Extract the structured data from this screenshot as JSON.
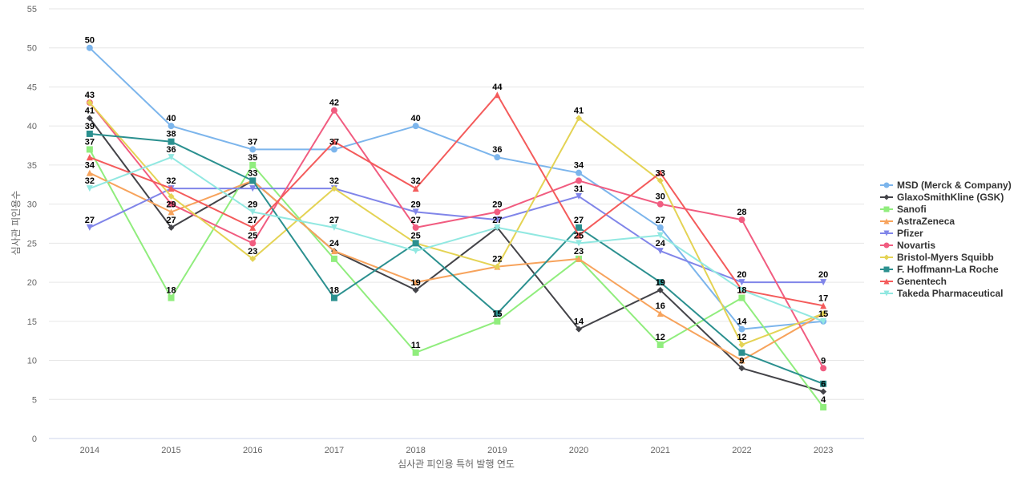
{
  "chart_data": {
    "type": "line",
    "title": "",
    "xlabel": "심사관 피인용 특허 발행 연도",
    "ylabel": "심사관 피인용수",
    "x": [
      "2014",
      "2015",
      "2016",
      "2017",
      "2018",
      "2019",
      "2020",
      "2021",
      "2022",
      "2023"
    ],
    "ylim": [
      0,
      55
    ],
    "yticks": [
      0,
      5,
      10,
      15,
      20,
      25,
      30,
      35,
      40,
      45,
      50,
      55
    ],
    "grid": true,
    "legend_position": "right",
    "series": [
      {
        "name": "MSD (Merck & Company)",
        "color": "#7cb5ec",
        "marker": "circle",
        "values": [
          50,
          40,
          37,
          37,
          40,
          36,
          34,
          27,
          14,
          15
        ]
      },
      {
        "name": "GlaxoSmithKline (GSK)",
        "color": "#434348",
        "marker": "diamond",
        "values": [
          41,
          27,
          33,
          24,
          19,
          27,
          14,
          19,
          9,
          6
        ]
      },
      {
        "name": "Sanofi",
        "color": "#90ed7d",
        "marker": "square",
        "values": [
          37,
          18,
          35,
          23,
          11,
          15,
          23,
          12,
          18,
          4
        ]
      },
      {
        "name": "AstraZeneca",
        "color": "#f7a35c",
        "marker": "triangle",
        "values": [
          34,
          29,
          33,
          24,
          20,
          22,
          23,
          16,
          10,
          16
        ]
      },
      {
        "name": "Pfizer",
        "color": "#8085e9",
        "marker": "triangle-down",
        "values": [
          27,
          32,
          32,
          32,
          29,
          28,
          31,
          24,
          20,
          20
        ]
      },
      {
        "name": "Novartis",
        "color": "#f15c80",
        "marker": "circle",
        "values": [
          43,
          30,
          25,
          42,
          27,
          29,
          33,
          30,
          28,
          9
        ]
      },
      {
        "name": "Bristol-Myers Squibb",
        "color": "#e4d354",
        "marker": "diamond",
        "values": [
          43,
          31,
          23,
          32,
          25,
          22,
          41,
          33,
          12,
          16
        ]
      },
      {
        "name": "F. Hoffmann-La Roche",
        "color": "#2b908f",
        "marker": "square",
        "values": [
          39,
          38,
          33,
          18,
          25,
          16,
          27,
          20,
          11,
          7
        ]
      },
      {
        "name": "Genentech",
        "color": "#f45b5b",
        "marker": "triangle",
        "values": [
          36,
          32,
          27,
          38,
          32,
          44,
          26,
          34,
          19,
          17
        ]
      },
      {
        "name": "Takeda Pharmaceutical",
        "color": "#91e8e1",
        "marker": "triangle-down",
        "values": [
          32,
          36,
          29,
          27,
          24,
          27,
          25,
          26,
          19,
          15
        ]
      }
    ],
    "data_labels": [
      {
        "x": 0,
        "value": 50,
        "series": 0
      },
      {
        "x": 0,
        "value": 43,
        "series": 5
      },
      {
        "x": 0,
        "value": 41,
        "series": 1
      },
      {
        "x": 0,
        "value": 39,
        "series": 7
      },
      {
        "x": 0,
        "value": 37,
        "series": 2
      },
      {
        "x": 0,
        "value": 34,
        "series": 3
      },
      {
        "x": 0,
        "value": 32,
        "series": 9
      },
      {
        "x": 0,
        "value": 27,
        "series": 4
      },
      {
        "x": 1,
        "value": 40,
        "series": 0
      },
      {
        "x": 1,
        "value": 38,
        "series": 7
      },
      {
        "x": 1,
        "value": 36,
        "series": 9
      },
      {
        "x": 1,
        "value": 32,
        "series": 8
      },
      {
        "x": 1,
        "value": 29,
        "series": 3
      },
      {
        "x": 1,
        "value": 27,
        "series": 1
      },
      {
        "x": 1,
        "value": 18,
        "series": 2
      },
      {
        "x": 2,
        "value": 37,
        "series": 0
      },
      {
        "x": 2,
        "value": 35,
        "series": 2
      },
      {
        "x": 2,
        "value": 33,
        "series": 7
      },
      {
        "x": 2,
        "value": 29,
        "series": 9
      },
      {
        "x": 2,
        "value": 27,
        "series": 8
      },
      {
        "x": 2,
        "value": 25,
        "series": 5
      },
      {
        "x": 2,
        "value": 23,
        "series": 6
      },
      {
        "x": 3,
        "value": 42,
        "series": 5
      },
      {
        "x": 3,
        "value": 37,
        "series": 0
      },
      {
        "x": 3,
        "value": 32,
        "series": 4
      },
      {
        "x": 3,
        "value": 27,
        "series": 9
      },
      {
        "x": 3,
        "value": 24,
        "series": 1
      },
      {
        "x": 3,
        "value": 18,
        "series": 7
      },
      {
        "x": 4,
        "value": 40,
        "series": 0
      },
      {
        "x": 4,
        "value": 32,
        "series": 8
      },
      {
        "x": 4,
        "value": 29,
        "series": 4
      },
      {
        "x": 4,
        "value": 27,
        "series": 5
      },
      {
        "x": 4,
        "value": 25,
        "series": 7
      },
      {
        "x": 4,
        "value": 19,
        "series": 1
      },
      {
        "x": 4,
        "value": 11,
        "series": 2
      },
      {
        "x": 5,
        "value": 44,
        "series": 8
      },
      {
        "x": 5,
        "value": 36,
        "series": 0
      },
      {
        "x": 5,
        "value": 29,
        "series": 5
      },
      {
        "x": 5,
        "value": 27,
        "series": 1
      },
      {
        "x": 5,
        "value": 22,
        "series": 6
      },
      {
        "x": 5,
        "value": 15,
        "series": 2
      },
      {
        "x": 6,
        "value": 41,
        "series": 6
      },
      {
        "x": 6,
        "value": 34,
        "series": 0
      },
      {
        "x": 6,
        "value": 31,
        "series": 4
      },
      {
        "x": 6,
        "value": 27,
        "series": 7
      },
      {
        "x": 6,
        "value": 25,
        "series": 9
      },
      {
        "x": 6,
        "value": 23,
        "series": 3
      },
      {
        "x": 6,
        "value": 14,
        "series": 1
      },
      {
        "x": 7,
        "value": 33,
        "series": 6
      },
      {
        "x": 7,
        "value": 30,
        "series": 5
      },
      {
        "x": 7,
        "value": 27,
        "series": 0
      },
      {
        "x": 7,
        "value": 24,
        "series": 4
      },
      {
        "x": 7,
        "value": 19,
        "series": 1
      },
      {
        "x": 7,
        "value": 16,
        "series": 3
      },
      {
        "x": 7,
        "value": 12,
        "series": 2
      },
      {
        "x": 8,
        "value": 28,
        "series": 5
      },
      {
        "x": 8,
        "value": 20,
        "series": 4
      },
      {
        "x": 8,
        "value": 18,
        "series": 2
      },
      {
        "x": 8,
        "value": 14,
        "series": 0
      },
      {
        "x": 8,
        "value": 12,
        "series": 6
      },
      {
        "x": 8,
        "value": 9,
        "series": 1
      },
      {
        "x": 9,
        "value": 20,
        "series": 4
      },
      {
        "x": 9,
        "value": 17,
        "series": 8
      },
      {
        "x": 9,
        "value": 15,
        "series": 0
      },
      {
        "x": 9,
        "value": 9,
        "series": 5
      },
      {
        "x": 9,
        "value": 6,
        "series": 1
      },
      {
        "x": 9,
        "value": 4,
        "series": 2
      }
    ]
  }
}
